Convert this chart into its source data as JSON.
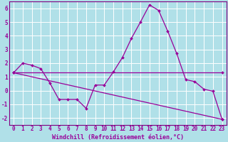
{
  "xlabel": "Windchill (Refroidissement éolien,°C)",
  "bg_color": "#b0e0e8",
  "grid_color": "#ffffff",
  "line_color": "#990099",
  "spine_color": "#800080",
  "xlim_min": -0.5,
  "xlim_max": 23.5,
  "ylim_min": -2.5,
  "ylim_max": 6.5,
  "yticks": [
    -2,
    -1,
    0,
    1,
    2,
    3,
    4,
    5,
    6
  ],
  "xticks": [
    0,
    1,
    2,
    3,
    4,
    5,
    6,
    7,
    8,
    9,
    10,
    11,
    12,
    13,
    14,
    15,
    16,
    17,
    18,
    19,
    20,
    21,
    22,
    23
  ],
  "line1_x": [
    0,
    1,
    2,
    3,
    4,
    5,
    6,
    7,
    8,
    9,
    10,
    11,
    12,
    13,
    14,
    15,
    16,
    17,
    18,
    19,
    20,
    21,
    22,
    23
  ],
  "line1_y": [
    1.3,
    2.0,
    1.85,
    1.6,
    0.55,
    -0.65,
    -0.65,
    -0.65,
    -1.3,
    0.4,
    0.4,
    1.35,
    2.4,
    3.8,
    5.0,
    6.25,
    5.85,
    4.35,
    2.7,
    0.8,
    0.65,
    0.1,
    -0.05,
    -2.1
  ],
  "line2_x": [
    0,
    23
  ],
  "line2_y": [
    1.3,
    1.3
  ],
  "line3_x": [
    0,
    23
  ],
  "line3_y": [
    1.3,
    -2.1
  ],
  "xlabel_fontsize": 6.0,
  "tick_fontsize": 5.5
}
